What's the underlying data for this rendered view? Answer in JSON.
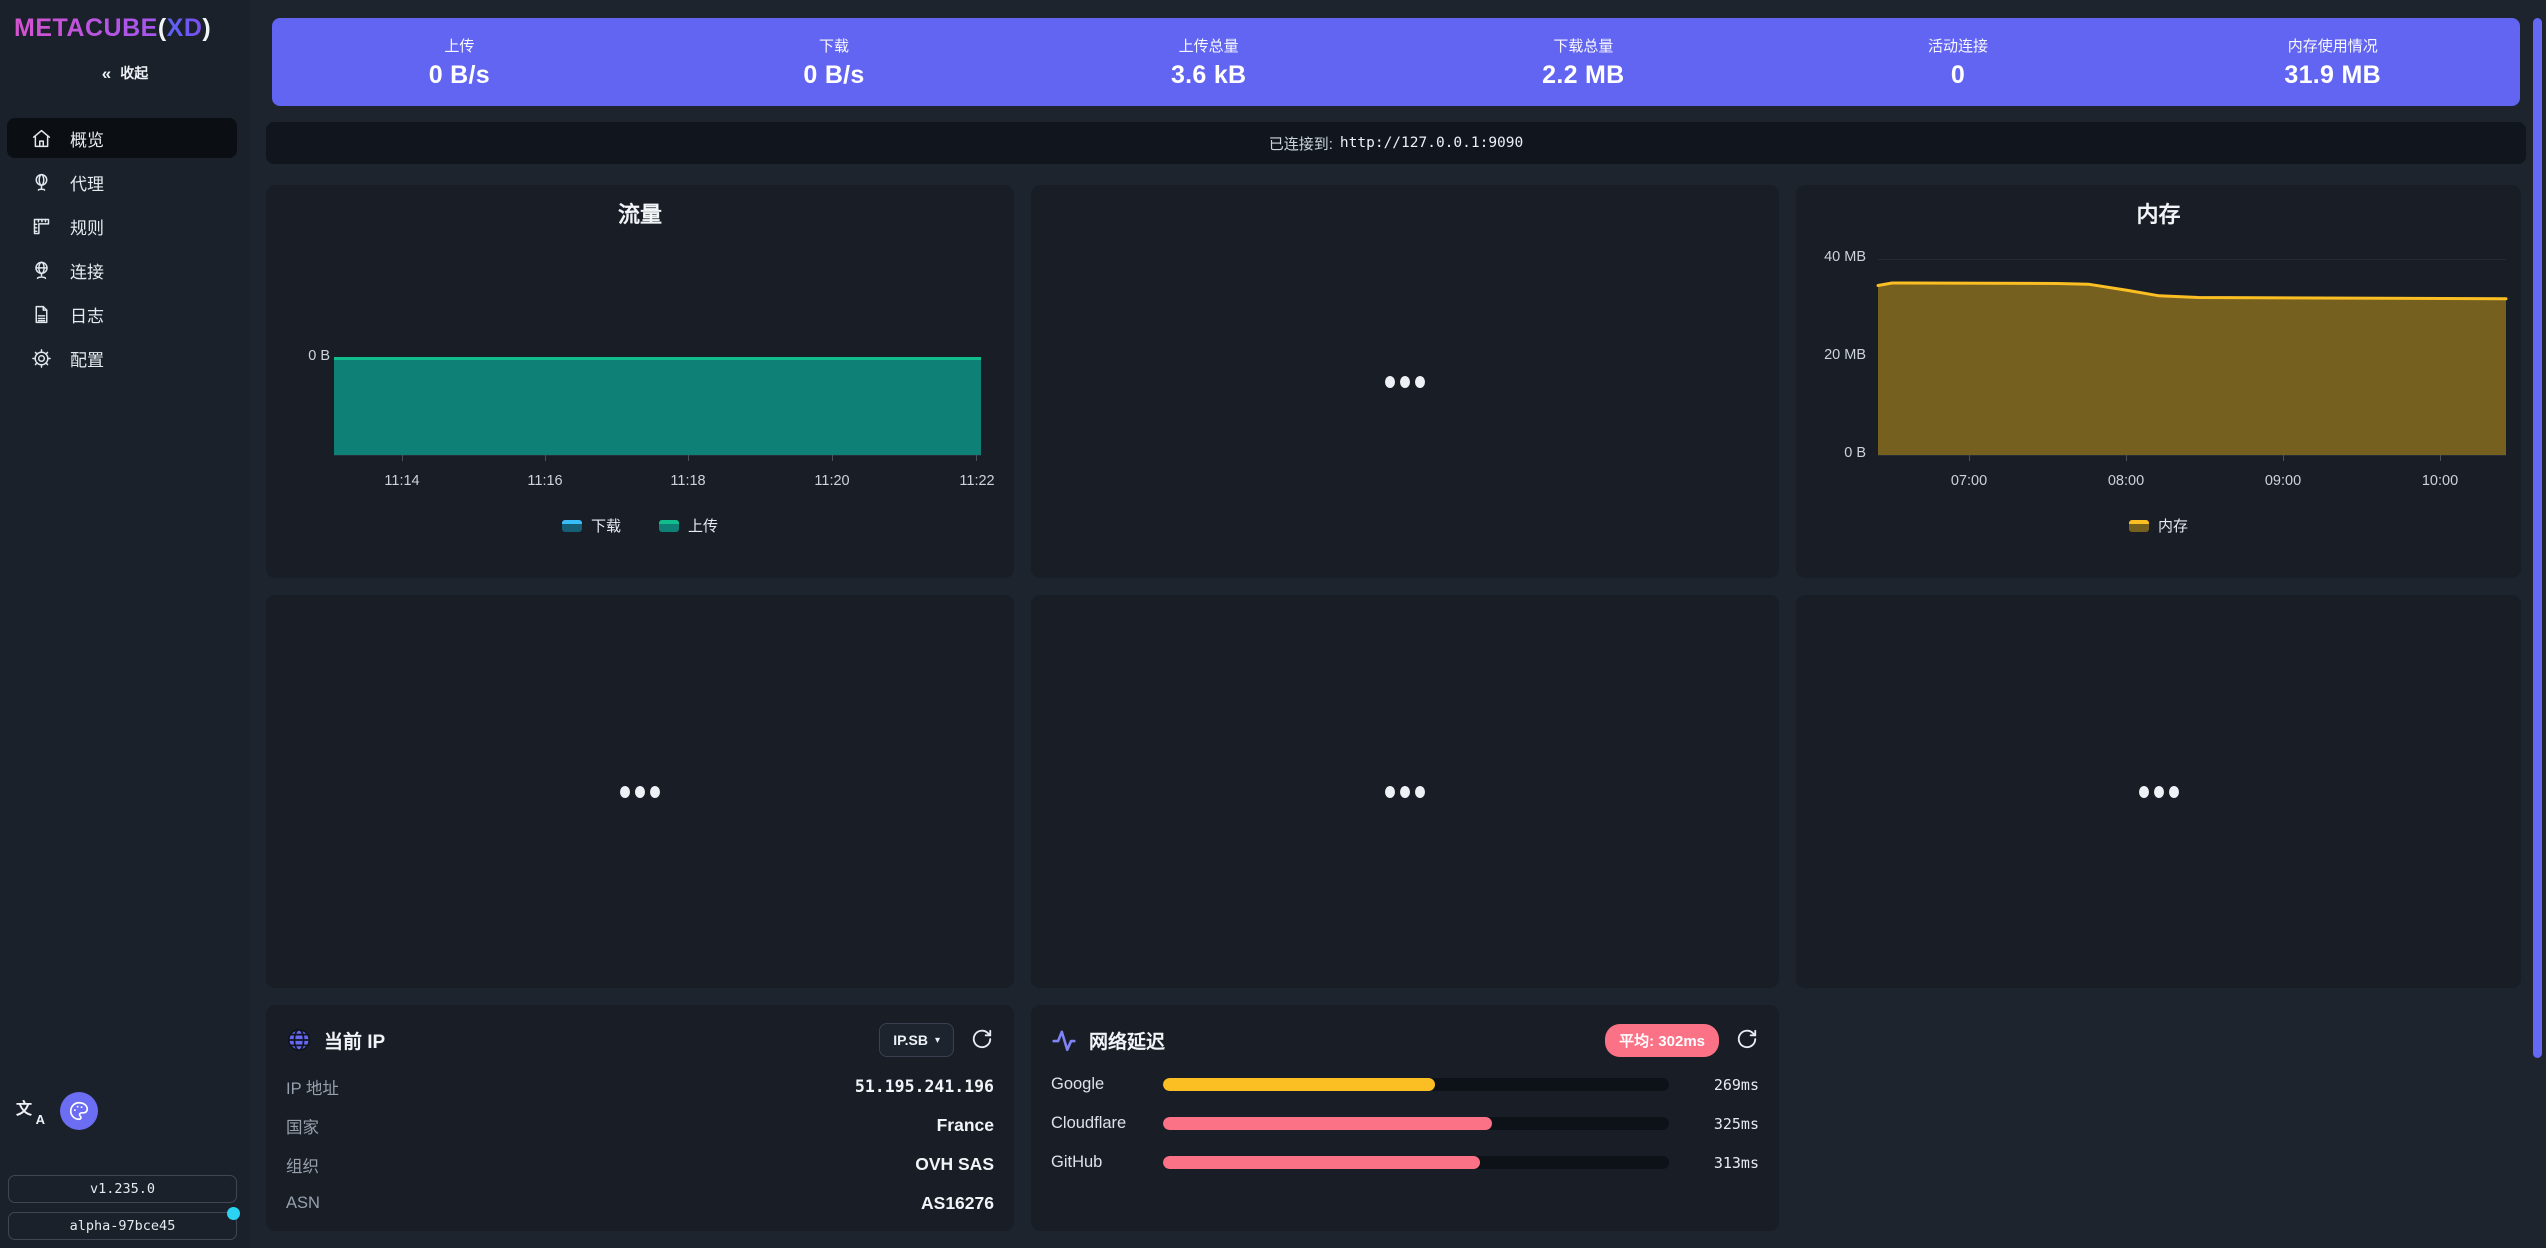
{
  "colors": {
    "accent": "#6165f1",
    "card": "#181d26",
    "background": "#1e242d",
    "pink": "#fb7185",
    "amber": "#fbbf24",
    "teal_line": "#12bd8d",
    "teal_fill": "#0f8076",
    "scrollbar": "#6468f2",
    "update_dot": "#2bd2f2"
  },
  "sidebar": {
    "logo": {
      "brand": "METACUBE",
      "open": "(",
      "variant": "XD",
      "close": ")"
    },
    "collapse": {
      "icon": "chevrons-left",
      "label": "收起"
    },
    "menu": [
      {
        "label": "概览",
        "icon": "home-icon",
        "active": true
      },
      {
        "label": "代理",
        "icon": "globe-stand-icon",
        "active": false
      },
      {
        "label": "规则",
        "icon": "ruler-icon",
        "active": false
      },
      {
        "label": "连接",
        "icon": "globe-icon",
        "active": false
      },
      {
        "label": "日志",
        "icon": "file-text-icon",
        "active": false
      },
      {
        "label": "配置",
        "icon": "gear-icon",
        "active": false
      }
    ],
    "footer": {
      "version": "v1.235.0",
      "build": "alpha-97bce45",
      "has_update_dot": true
    }
  },
  "header_stats": [
    {
      "label": "上传",
      "value": "0 B/s"
    },
    {
      "label": "下载",
      "value": "0 B/s"
    },
    {
      "label": "上传总量",
      "value": "3.6 kB"
    },
    {
      "label": "下载总量",
      "value": "2.2 MB"
    },
    {
      "label": "活动连接",
      "value": "0"
    },
    {
      "label": "内存使用情况",
      "value": "31.9 MB"
    }
  ],
  "status_bar": {
    "prefix": "已连接到:",
    "endpoint": "http://127.0.0.1:9090"
  },
  "chart_data": [
    {
      "type": "area",
      "title": "流量",
      "x_ticks": [
        "11:14",
        "11:16",
        "11:18",
        "11:20",
        "11:22"
      ],
      "x_all": [
        "11:13",
        "11:14",
        "11:15",
        "11:16",
        "11:17",
        "11:18",
        "11:19",
        "11:20",
        "11:21",
        "11:22"
      ],
      "y_ticks": [
        "0 B"
      ],
      "ylabel": "",
      "xlabel": "",
      "grid": false,
      "legend_position": "bottom",
      "series": [
        {
          "name": "下载",
          "color": "#38bdf8",
          "fill": "#155e75",
          "values_bps": [
            0,
            0,
            0,
            0,
            0,
            0,
            0,
            0,
            0,
            0
          ]
        },
        {
          "name": "上传",
          "color": "#12bd8d",
          "fill": "#0f8076",
          "values_bps": [
            0,
            0,
            0,
            0,
            0,
            0,
            0,
            0,
            0,
            0
          ]
        }
      ]
    },
    {
      "type": "area",
      "title": "内存",
      "x_ticks": [
        "07:00",
        "08:00",
        "09:00",
        "10:00"
      ],
      "y_ticks": [
        "40 MB",
        "20 MB",
        "0 B"
      ],
      "ylim_mb": [
        0,
        40
      ],
      "xlim_hours": [
        6.41,
        10.41
      ],
      "grid": true,
      "legend_position": "bottom",
      "series": [
        {
          "name": "内存",
          "color": "#fbbf24",
          "fill": "#75601f",
          "points_hour_mb": [
            [
              6.41,
              34.6
            ],
            [
              6.5,
              35.1
            ],
            [
              7.55,
              35.0
            ],
            [
              7.75,
              34.85
            ],
            [
              8.0,
              33.6
            ],
            [
              8.2,
              32.5
            ],
            [
              8.45,
              32.15
            ],
            [
              9.2,
              32.05
            ],
            [
              10.41,
              31.9
            ]
          ]
        }
      ]
    }
  ],
  "ip_card": {
    "title": "当前 IP",
    "provider": "IP.SB",
    "rows": [
      {
        "label": "IP 地址",
        "value": "51.195.241.196"
      },
      {
        "label": "国家",
        "value": "France"
      },
      {
        "label": "组织",
        "value": "OVH SAS"
      },
      {
        "label": "ASN",
        "value": "AS16276"
      }
    ]
  },
  "latency_card": {
    "title": "网络延迟",
    "average_badge": "平均: 302ms",
    "scale_max_ms": 500,
    "rows": [
      {
        "label": "Google",
        "value": "269ms",
        "ms": 269,
        "color": "#fbbf24"
      },
      {
        "label": "Cloudflare",
        "value": "325ms",
        "ms": 325,
        "color": "#fb7185"
      },
      {
        "label": "GitHub",
        "value": "313ms",
        "ms": 313,
        "color": "#fb7185"
      }
    ]
  }
}
